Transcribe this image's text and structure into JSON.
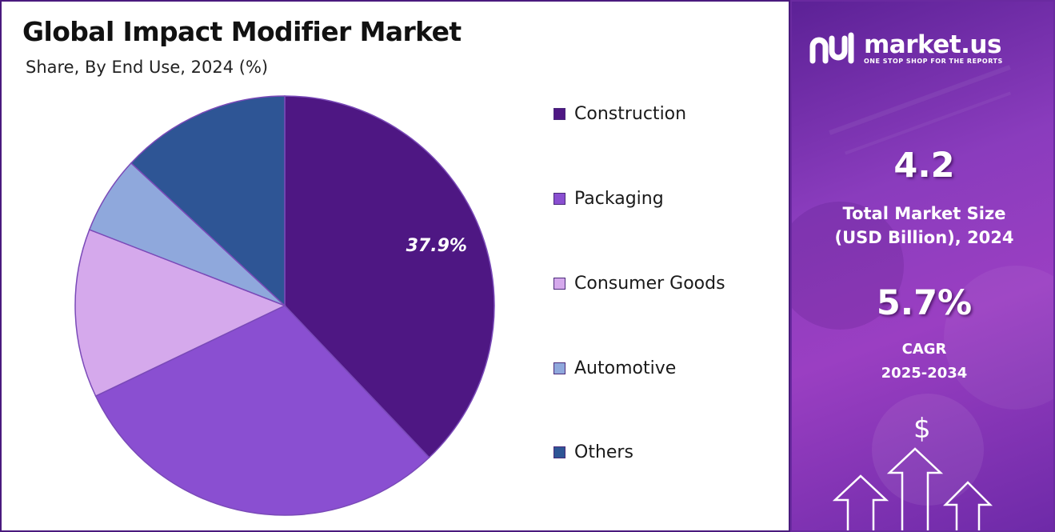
{
  "header": {
    "title": "Global Impact Modifier Market",
    "subtitle": "Share, By End Use, 2024 (%)"
  },
  "chart_data": {
    "type": "pie",
    "title": "Global Impact Modifier Market",
    "subtitle": "Share, By End Use, 2024 (%)",
    "categories": [
      "Construction",
      "Packaging",
      "Consumer Goods",
      "Automotive",
      "Others"
    ],
    "values": [
      37.9,
      30.0,
      13.0,
      6.0,
      13.1
    ],
    "colors": [
      "#4e1783",
      "#8a4fd1",
      "#d5a9ec",
      "#8fa8dc",
      "#2e5595"
    ],
    "data_labels": [
      "37.9%",
      "",
      "",
      "",
      ""
    ],
    "legend_position": "right"
  },
  "brand": {
    "name": "market.us",
    "tagline": "ONE STOP SHOP FOR THE REPORTS",
    "icon": "market-us-logo-icon"
  },
  "stats": {
    "market_size_value": "4.2",
    "market_size_label_1": "Total Market Size",
    "market_size_label_2": "(USD Billion), 2024",
    "cagr_value": "5.7%",
    "cagr_label_1": "CAGR",
    "cagr_label_2": "2025-2034"
  },
  "decor": {
    "dollar_symbol": "$",
    "icons": [
      "dollar-icon",
      "growth-arrows-icon"
    ]
  }
}
